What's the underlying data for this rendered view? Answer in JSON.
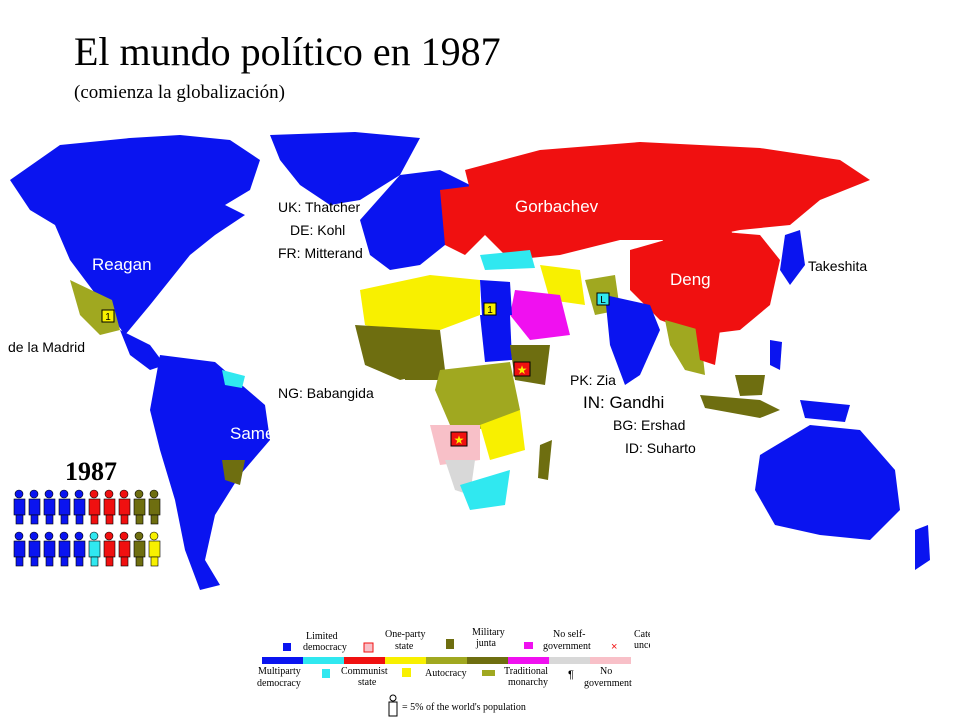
{
  "title": "El mundo político en 1987",
  "subtitle": "(comienza la globalización)",
  "map_labels": {
    "reagan": "Reagan",
    "gorbachev": "Gorbachev",
    "deng": "Deng",
    "takeshita": "Takeshita",
    "uk": "UK: Thatcher",
    "de": "DE: Kohl",
    "fr": "FR: Mitterand",
    "madrid": "de la Madrid",
    "ng": "NG: Babangida",
    "samey": "Samey",
    "pk": "PK: Zia",
    "in": "IN: Gandhi",
    "bg": "BG: Ershad",
    "id": "ID: Suharto"
  },
  "year": "1987",
  "markers": {
    "limited": "L",
    "autocracy": "1",
    "star": "★",
    "cross": "×",
    "monarchy": "¶"
  },
  "colors": {
    "multiparty": "#0a14f0",
    "limited": "#30e8f0",
    "communist": "#f01010",
    "oneparty": "#f8f000",
    "autocracy": "#a0a820",
    "military": "#6e6e10",
    "monarchy": "#f010f0",
    "noself": "#d8d8d8",
    "uncertain": "#f8c0c8",
    "ocean": "#ffffff"
  },
  "population_icons": [
    "multiparty",
    "multiparty",
    "multiparty",
    "multiparty",
    "multiparty",
    "communist",
    "communist",
    "communist",
    "military",
    "military",
    "multiparty",
    "multiparty",
    "multiparty",
    "multiparty",
    "multiparty",
    "limited",
    "communist",
    "communist",
    "military",
    "oneparty"
  ],
  "legend": {
    "limited": [
      "Limited",
      "democracy"
    ],
    "oneparty": [
      "One-party",
      "state"
    ],
    "military": [
      "Military",
      "junta"
    ],
    "noself": [
      "No self-",
      "government"
    ],
    "uncertain": [
      "Category",
      "uncertain"
    ],
    "multiparty": [
      "Multiparty",
      "democracy"
    ],
    "communist": [
      "Communist",
      "state"
    ],
    "autocracy": "Autocracy",
    "monarchy": [
      "Traditional",
      "monarchy"
    ],
    "nogov": [
      "No",
      "government"
    ],
    "population": "= 5% of the world's population"
  }
}
